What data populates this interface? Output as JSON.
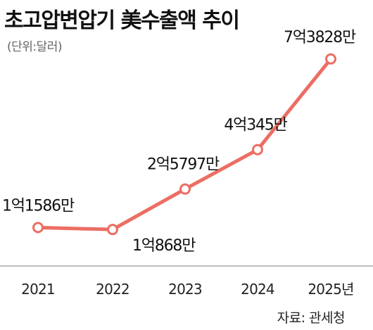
{
  "header": {
    "title": "초고압변압기 美수출액 추이",
    "unit": "(단위:달러)"
  },
  "footer": {
    "source": "자료: 관세청"
  },
  "colors": {
    "line": "#ec6e63",
    "marker_fill": "#ffffff",
    "axis": "#999999"
  },
  "chart_data": {
    "type": "line",
    "title": "초고압변압기 美수출액 추이",
    "ylabel": "(단위:달러)",
    "xlabel": "",
    "categories": [
      "2021",
      "2022",
      "2023",
      "2024",
      "2025년"
    ],
    "series": [
      {
        "values": [
          115860000,
          108680000,
          257970000,
          403450000,
          738280000
        ],
        "labels": [
          "1억1586만",
          "1억868만",
          "2억5797만",
          "4억345만",
          "7억3828만"
        ]
      }
    ],
    "ylim": [
      0,
      800000000
    ],
    "grid": false,
    "legend": "none"
  }
}
